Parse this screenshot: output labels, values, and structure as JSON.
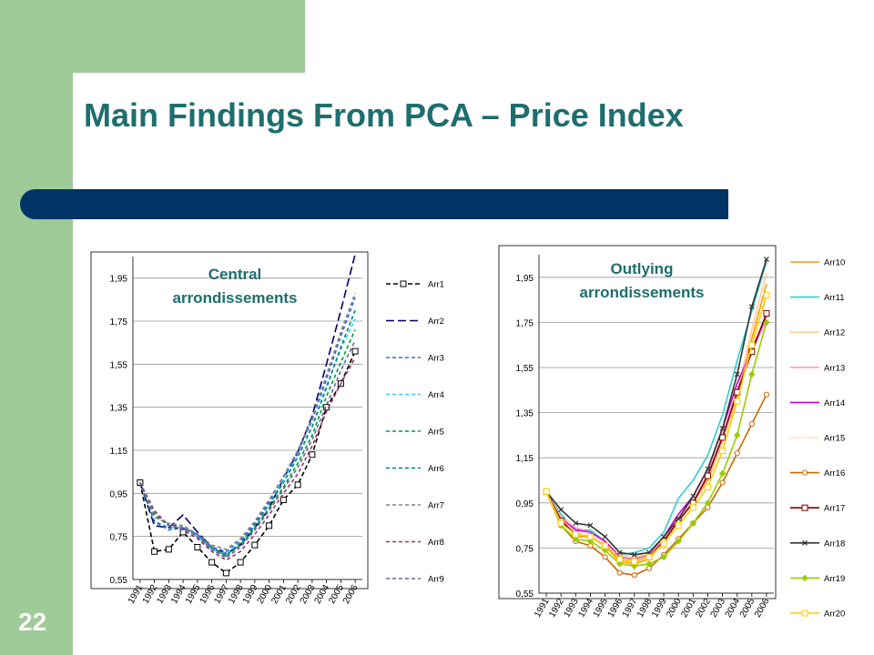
{
  "slide": {
    "title": "Main Findings From PCA – Price Index",
    "page_number": "22"
  },
  "colors": {
    "green": "#9ecb97",
    "navy": "#003366",
    "teal": "#1e6e6e"
  },
  "chart_data": [
    {
      "type": "line",
      "title": "Central arrondissements",
      "title_lines": [
        "Central",
        "arrondissements"
      ],
      "x": [
        "1991",
        "1992",
        "1993",
        "1994",
        "1995",
        "1996",
        "1997",
        "1998",
        "1999",
        "2000",
        "2001",
        "2002",
        "2003",
        "2004",
        "2005",
        "2006"
      ],
      "ylim": [
        0.55,
        2.05
      ],
      "yticks": [
        "0,55",
        "0,75",
        "0,95",
        "1,15",
        "1,35",
        "1,55",
        "1,75",
        "1,95"
      ],
      "grid": true,
      "legend": "right",
      "series": [
        {
          "name": "Arr1",
          "color": "#000000",
          "dash": "5,3",
          "marker": "square",
          "values": [
            1.0,
            0.68,
            0.69,
            0.77,
            0.7,
            0.63,
            0.58,
            0.63,
            0.71,
            0.8,
            0.92,
            0.99,
            1.13,
            1.35,
            1.46,
            1.61
          ]
        },
        {
          "name": "Arr2",
          "color": "#000066",
          "dash": "9,4",
          "marker": "none",
          "values": [
            1.0,
            0.8,
            0.79,
            0.85,
            0.77,
            0.7,
            0.67,
            0.71,
            0.79,
            0.88,
            1.02,
            1.14,
            1.31,
            1.55,
            1.8,
            2.06
          ]
        },
        {
          "name": "Arr3",
          "color": "#3366ff",
          "dash": "4,3",
          "marker": "none",
          "values": [
            1.0,
            0.82,
            0.79,
            0.79,
            0.76,
            0.7,
            0.68,
            0.73,
            0.81,
            0.91,
            1.03,
            1.14,
            1.29,
            1.48,
            1.68,
            1.86
          ]
        },
        {
          "name": "Arr4",
          "color": "#33ccff",
          "dash": "4,3",
          "marker": "none",
          "values": [
            1.0,
            0.84,
            0.81,
            0.8,
            0.75,
            0.69,
            0.67,
            0.72,
            0.8,
            0.9,
            1.02,
            1.12,
            1.26,
            1.45,
            1.62,
            1.76
          ]
        },
        {
          "name": "Arr5",
          "color": "#009933",
          "dash": "4,3",
          "marker": "none",
          "values": [
            1.0,
            0.85,
            0.8,
            0.8,
            0.76,
            0.7,
            0.66,
            0.71,
            0.79,
            0.88,
            0.98,
            1.09,
            1.22,
            1.4,
            1.56,
            1.71
          ]
        },
        {
          "name": "Arr6",
          "color": "#008080",
          "dash": "4,3",
          "marker": "none",
          "values": [
            1.0,
            0.82,
            0.78,
            0.79,
            0.75,
            0.69,
            0.66,
            0.72,
            0.8,
            0.9,
            1.0,
            1.12,
            1.26,
            1.44,
            1.63,
            1.8
          ]
        },
        {
          "name": "Arr7",
          "color": "#808080",
          "dash": "4,3",
          "marker": "none",
          "values": [
            1.0,
            0.84,
            0.81,
            0.8,
            0.76,
            0.71,
            0.69,
            0.74,
            0.82,
            0.92,
            1.03,
            1.15,
            1.3,
            1.5,
            1.7,
            1.88
          ]
        },
        {
          "name": "Arr8",
          "color": "#993366",
          "dash": "4,3",
          "marker": "none",
          "values": [
            1.0,
            0.87,
            0.8,
            0.78,
            0.74,
            0.68,
            0.64,
            0.68,
            0.76,
            0.85,
            0.95,
            1.04,
            1.17,
            1.33,
            1.46,
            1.58
          ]
        },
        {
          "name": "Arr9",
          "color": "#666699",
          "dash": "4,3",
          "marker": "none",
          "values": [
            1.0,
            0.86,
            0.8,
            0.79,
            0.75,
            0.69,
            0.65,
            0.7,
            0.78,
            0.87,
            0.97,
            1.07,
            1.2,
            1.36,
            1.52,
            1.66
          ]
        }
      ]
    },
    {
      "type": "line",
      "title": "Outlying arrondissements",
      "title_lines": [
        "Outlying",
        "arrondissements"
      ],
      "x": [
        "1991",
        "1992",
        "1993",
        "1994",
        "1995",
        "1996",
        "1997",
        "1998",
        "1999",
        "2000",
        "2001",
        "2002",
        "2003",
        "2004",
        "2005",
        "2006"
      ],
      "ylim": [
        0.55,
        2.05
      ],
      "yticks": [
        "0,55",
        "0,75",
        "0,95",
        "1,15",
        "1,35",
        "1,55",
        "1,75",
        "1,95"
      ],
      "grid": true,
      "legend": "right",
      "series": [
        {
          "name": "Arr10",
          "color": "#ff9900",
          "marker": "none",
          "values": [
            1.0,
            0.88,
            0.8,
            0.8,
            0.76,
            0.69,
            0.68,
            0.7,
            0.78,
            0.88,
            0.95,
            1.05,
            1.22,
            1.42,
            1.68,
            1.92
          ]
        },
        {
          "name": "Arr11",
          "color": "#33cccc",
          "marker": "none",
          "values": [
            1.0,
            0.9,
            0.83,
            0.83,
            0.78,
            0.72,
            0.73,
            0.75,
            0.82,
            0.97,
            1.05,
            1.16,
            1.34,
            1.58,
            1.8,
            2.02
          ]
        },
        {
          "name": "Arr12",
          "color": "#ffcc99",
          "marker": "none",
          "values": [
            1.0,
            0.89,
            0.84,
            0.82,
            0.78,
            0.72,
            0.71,
            0.73,
            0.8,
            0.88,
            0.95,
            1.06,
            1.22,
            1.43,
            1.72,
            1.97
          ]
        },
        {
          "name": "Arr13",
          "color": "#ff99cc",
          "marker": "none",
          "values": [
            1.0,
            0.88,
            0.84,
            0.82,
            0.78,
            0.71,
            0.7,
            0.72,
            0.79,
            0.88,
            0.96,
            1.08,
            1.25,
            1.45,
            1.62,
            1.76
          ]
        },
        {
          "name": "Arr14",
          "color": "#cc00cc",
          "marker": "none",
          "values": [
            1.0,
            0.88,
            0.83,
            0.82,
            0.78,
            0.71,
            0.7,
            0.72,
            0.8,
            0.9,
            0.98,
            1.1,
            1.28,
            1.48,
            1.63,
            1.78
          ]
        },
        {
          "name": "Arr15",
          "color": "#ffcc99",
          "dash": "1,1",
          "marker": "none",
          "values": [
            1.0,
            0.88,
            0.82,
            0.81,
            0.77,
            0.71,
            0.7,
            0.72,
            0.79,
            0.88,
            0.96,
            1.07,
            1.24,
            1.44,
            1.66,
            1.87
          ]
        },
        {
          "name": "Arr16",
          "color": "#cc6600",
          "marker": "circle",
          "values": [
            1.0,
            0.85,
            0.78,
            0.76,
            0.71,
            0.64,
            0.63,
            0.66,
            0.72,
            0.79,
            0.86,
            0.93,
            1.04,
            1.17,
            1.3,
            1.43
          ]
        },
        {
          "name": "Arr17",
          "color": "#800000",
          "marker": "square",
          "values": [
            1.0,
            0.87,
            0.81,
            0.8,
            0.76,
            0.7,
            0.69,
            0.71,
            0.78,
            0.87,
            0.95,
            1.07,
            1.24,
            1.44,
            1.62,
            1.79
          ]
        },
        {
          "name": "Arr18",
          "color": "#333333",
          "marker": "cross",
          "values": [
            1.0,
            0.92,
            0.86,
            0.85,
            0.8,
            0.73,
            0.72,
            0.73,
            0.8,
            0.88,
            0.98,
            1.1,
            1.28,
            1.52,
            1.82,
            2.03
          ]
        },
        {
          "name": "Arr19",
          "color": "#99cc00",
          "marker": "diamond",
          "values": [
            1.0,
            0.85,
            0.79,
            0.78,
            0.74,
            0.68,
            0.67,
            0.68,
            0.71,
            0.78,
            0.86,
            0.95,
            1.08,
            1.25,
            1.52,
            1.75
          ]
        },
        {
          "name": "Arr20",
          "color": "#ffcc00",
          "marker": "square",
          "values": [
            1.0,
            0.86,
            0.81,
            0.8,
            0.76,
            0.7,
            0.69,
            0.71,
            0.77,
            0.85,
            0.93,
            1.02,
            1.18,
            1.4,
            1.65,
            1.87
          ]
        }
      ]
    }
  ]
}
